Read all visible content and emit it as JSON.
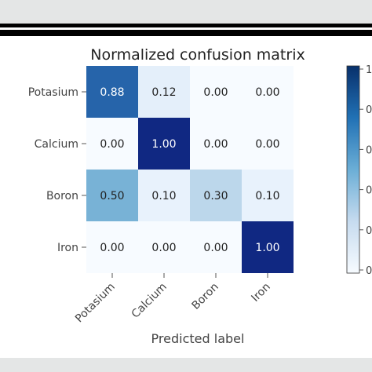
{
  "chart_data": {
    "type": "heatmap",
    "title": "Normalized confusion matrix",
    "xlabel": "Predicted label",
    "ylabel": "",
    "row_labels": [
      "Potasium",
      "Calcium",
      "Boron",
      "Iron"
    ],
    "col_labels": [
      "Potasium",
      "Calcium",
      "Boron",
      "Iron"
    ],
    "values": [
      [
        0.88,
        0.12,
        0.0,
        0.0
      ],
      [
        0.0,
        1.0,
        0.0,
        0.0
      ],
      [
        0.5,
        0.1,
        0.3,
        0.1
      ],
      [
        0.0,
        0.0,
        0.0,
        1.0
      ]
    ],
    "value_labels": [
      [
        "0.88",
        "0.12",
        "0.00",
        "0.00"
      ],
      [
        "0.00",
        "1.00",
        "0.00",
        "0.00"
      ],
      [
        "0.50",
        "0.10",
        "0.30",
        "0.10"
      ],
      [
        "0.00",
        "0.00",
        "0.00",
        "1.00"
      ]
    ],
    "colormap": "Blues",
    "colorbar_range": [
      0,
      1
    ],
    "colorbar_tick_labels": [
      "1",
      "0",
      "0",
      "0",
      "0",
      "0"
    ]
  }
}
